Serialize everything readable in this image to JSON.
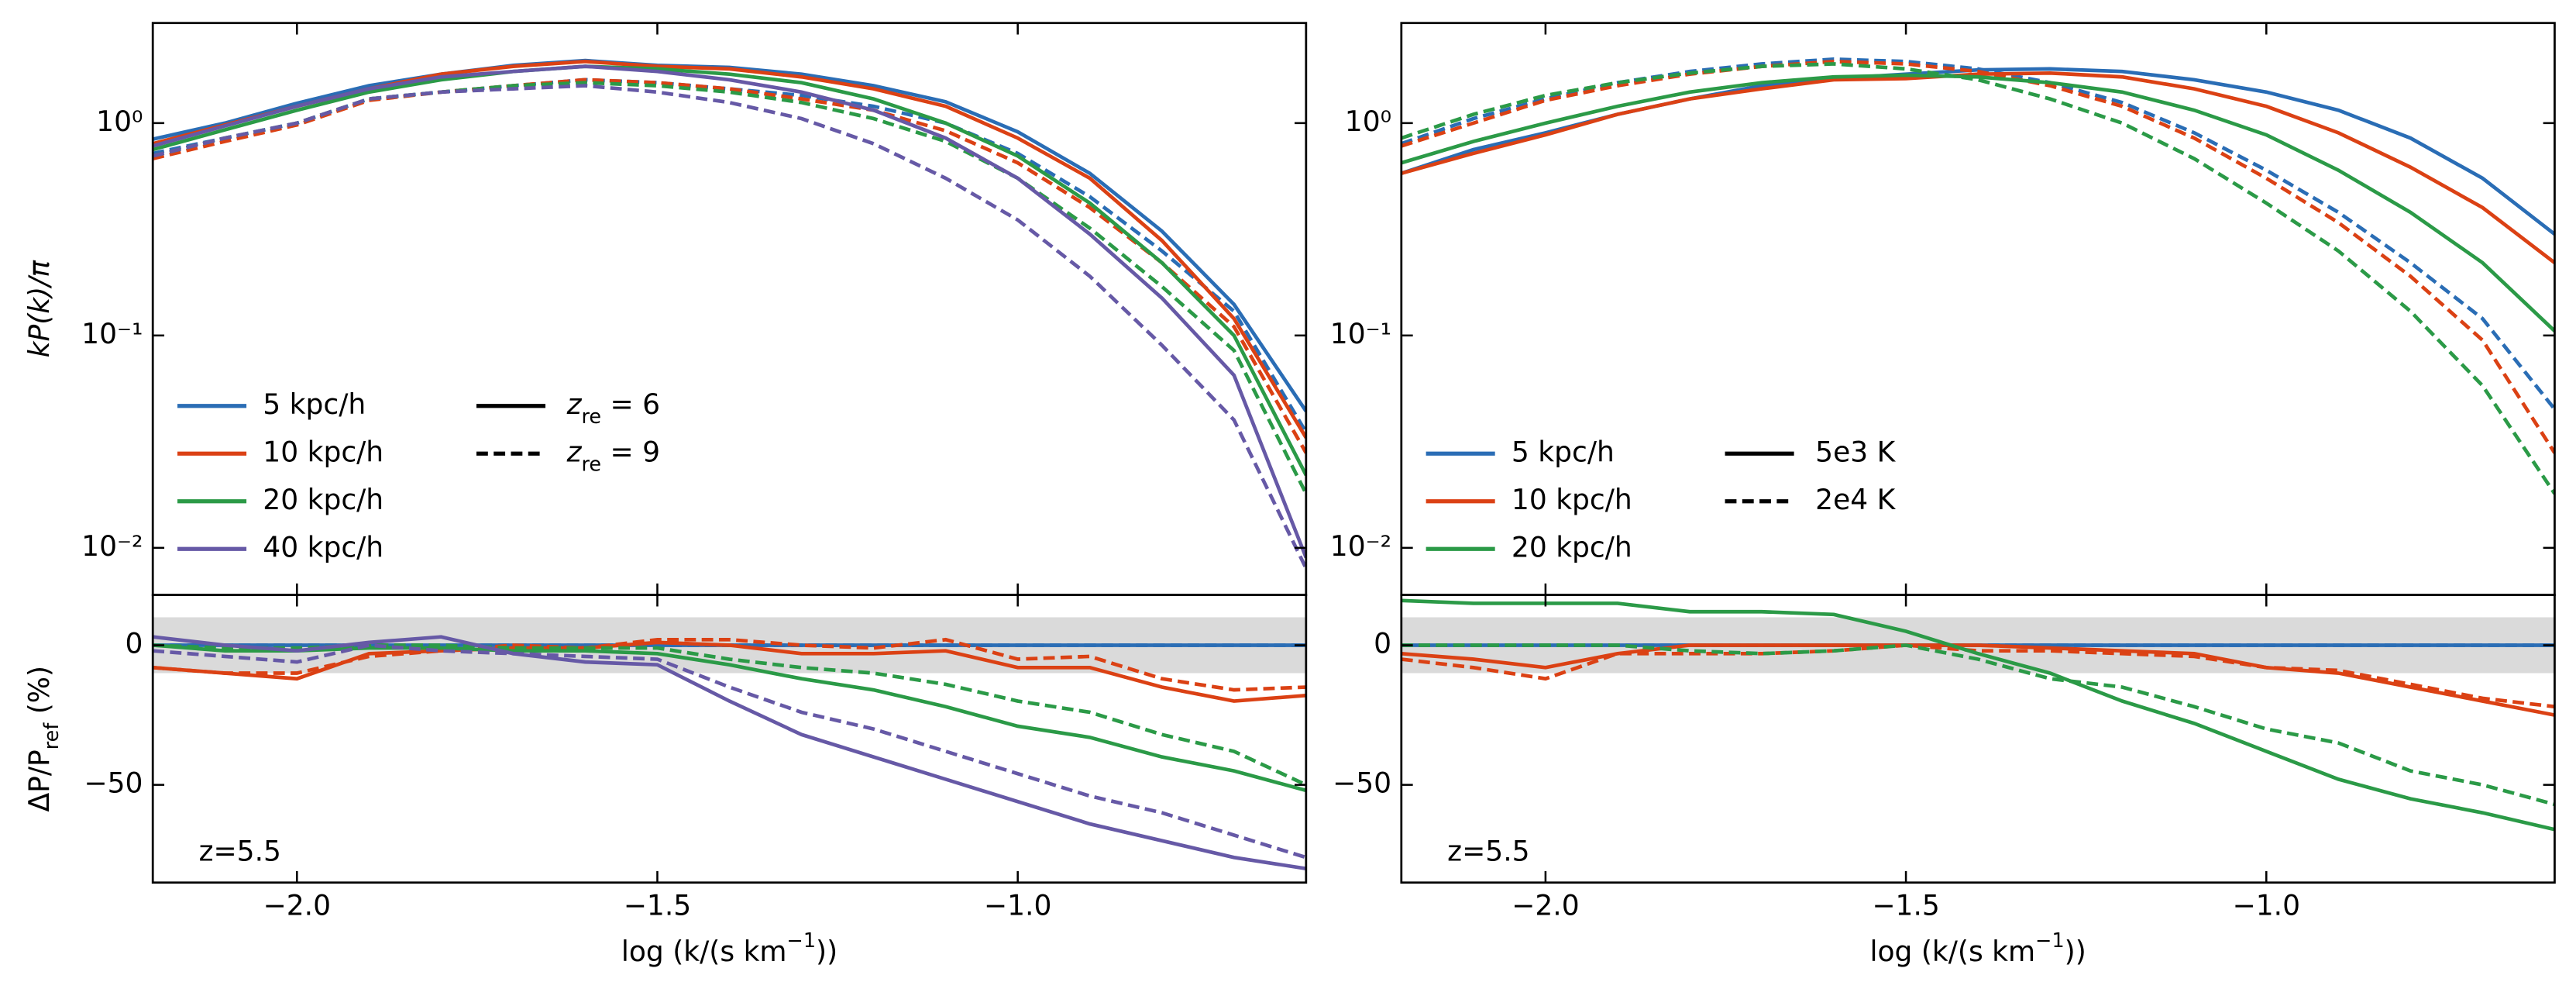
{
  "chart_data": [
    {
      "type": "line",
      "yscale": "log",
      "xlim": [
        -2.2,
        -0.6
      ],
      "ylim": [
        0.006,
        2.96
      ],
      "x": [
        -2.2,
        -2.1,
        -2.0,
        -1.9,
        -1.8,
        -1.7,
        -1.6,
        -1.5,
        -1.4,
        -1.3,
        -1.2,
        -1.1,
        -1.0,
        -0.9,
        -0.8,
        -0.7,
        -0.6
      ],
      "xticks": [
        -2,
        -1.5,
        -1
      ],
      "xticklabels": false,
      "yticks": [
        {
          "value": 1,
          "label": "10⁰"
        },
        {
          "value": 0.1,
          "label": "10⁻¹"
        },
        {
          "value": 0.01,
          "label": "10⁻²"
        }
      ],
      "ylabel": [
        {
          "t": "kP(k)/π",
          "i": true
        }
      ],
      "legend": "lower left",
      "styles": [
        {
          "label": [
            {
              "t": "z",
              "i": true
            },
            {
              "t": "re",
              "sub": true
            },
            {
              "t": " = 6"
            }
          ],
          "dash": false
        },
        {
          "label": [
            {
              "t": "z",
              "i": true
            },
            {
              "t": "re",
              "sub": true
            },
            {
              "t": " = 9"
            }
          ],
          "dash": true
        }
      ],
      "series": [
        {
          "name": "5 kpc/h",
          "color": "#2a6db5",
          "values": [
            [
              0.84,
              1.0,
              1.24,
              1.5,
              1.7,
              1.87,
              1.97,
              1.87,
              1.83,
              1.7,
              1.5,
              1.26,
              0.91,
              0.58,
              0.31,
              0.14,
              0.044
            ],
            [
              0.72,
              0.85,
              1.0,
              1.3,
              1.4,
              1.5,
              1.6,
              1.55,
              1.45,
              1.35,
              1.2,
              1.0,
              0.72,
              0.45,
              0.25,
              0.13,
              0.035
            ]
          ]
        },
        {
          "name": "10 kpc/h",
          "color": "#db4114",
          "values": [
            [
              0.8,
              0.98,
              1.2,
              1.45,
              1.7,
              1.85,
              1.95,
              1.85,
              1.8,
              1.65,
              1.45,
              1.2,
              0.85,
              0.55,
              0.28,
              0.12,
              0.033
            ],
            [
              0.68,
              0.82,
              0.98,
              1.28,
              1.4,
              1.5,
              1.6,
              1.55,
              1.45,
              1.3,
              1.15,
              0.92,
              0.65,
              0.4,
              0.22,
              0.11,
              0.028
            ]
          ]
        },
        {
          "name": "20 kpc/h",
          "color": "#2b9a47",
          "values": [
            [
              0.75,
              0.93,
              1.15,
              1.4,
              1.6,
              1.75,
              1.85,
              1.8,
              1.7,
              1.55,
              1.3,
              1.0,
              0.7,
              0.42,
              0.22,
              0.1,
              0.022
            ],
            [
              0.7,
              0.85,
              1.0,
              1.3,
              1.4,
              1.5,
              1.55,
              1.5,
              1.4,
              1.25,
              1.05,
              0.82,
              0.55,
              0.32,
              0.17,
              0.085,
              0.018
            ]
          ]
        },
        {
          "name": "40 kpc/h",
          "color": "#6659a6",
          "values": [
            [
              0.78,
              0.97,
              1.2,
              1.45,
              1.65,
              1.75,
              1.85,
              1.75,
              1.6,
              1.4,
              1.15,
              0.85,
              0.55,
              0.3,
              0.15,
              0.065,
              0.009
            ],
            [
              0.7,
              0.85,
              1.0,
              1.3,
              1.4,
              1.45,
              1.5,
              1.4,
              1.25,
              1.05,
              0.8,
              0.55,
              0.35,
              0.19,
              0.09,
              0.04,
              0.008
            ]
          ]
        }
      ]
    },
    {
      "type": "line",
      "xlim": [
        -2.2,
        -0.6
      ],
      "ylim": [
        -85,
        18
      ],
      "band": [
        -10,
        10
      ],
      "x": [
        -2.2,
        -2.1,
        -2.0,
        -1.9,
        -1.8,
        -1.7,
        -1.6,
        -1.5,
        -1.4,
        -1.3,
        -1.2,
        -1.1,
        -1.0,
        -0.9,
        -0.8,
        -0.7,
        -0.6
      ],
      "xticks": [
        {
          "value": -2,
          "label": "−2.0"
        },
        {
          "value": -1.5,
          "label": "−1.5"
        },
        {
          "value": -1,
          "label": "−1.0"
        }
      ],
      "yticks": [
        0,
        {
          "value": -50,
          "label": "−50"
        }
      ],
      "xlabel": [
        {
          "t": "log (k/(s km"
        },
        {
          "t": "−1",
          "sup": true
        },
        {
          "t": "))"
        }
      ],
      "ylabel": [
        {
          "t": "ΔP/P"
        },
        {
          "t": "ref",
          "sub": true
        },
        {
          "t": " (%)"
        }
      ],
      "annotation": "z=5.5",
      "series": [
        {
          "color": "#2a6db5",
          "values": [
            [
              0,
              0,
              0,
              0,
              0,
              0,
              0,
              0,
              0,
              0,
              0,
              0,
              0,
              0,
              0,
              0,
              0
            ],
            [
              0,
              0,
              0,
              0,
              0,
              0,
              0,
              0,
              0,
              0,
              0,
              0,
              0,
              0,
              0,
              0,
              0
            ]
          ]
        },
        {
          "color": "#db4114",
          "values": [
            [
              -8,
              -10,
              -12,
              -3,
              -2,
              -1,
              -1,
              1,
              0,
              -3,
              -3,
              -2,
              -8,
              -8,
              -15,
              -20,
              -18
            ],
            [
              -8,
              -10,
              -10,
              -4,
              -2,
              0,
              -1,
              2,
              2,
              0,
              -1,
              2,
              -5,
              -4,
              -12,
              -16,
              -15
            ]
          ]
        },
        {
          "color": "#2b9a47",
          "values": [
            [
              0,
              -2,
              -2,
              -1,
              -1,
              -2,
              -2,
              -3,
              -7,
              -12,
              -16,
              -22,
              -29,
              -33,
              -40,
              -45,
              -52
            ],
            [
              0,
              -1,
              -1,
              0,
              0,
              -1,
              -1,
              -1,
              -5,
              -8,
              -10,
              -14,
              -20,
              -24,
              -32,
              -38,
              -50
            ]
          ]
        },
        {
          "color": "#6659a6",
          "values": [
            [
              3,
              0,
              -2,
              1,
              3,
              -3,
              -6,
              -7,
              -20,
              -32,
              -40,
              -48,
              -56,
              -64,
              -70,
              -76,
              -80
            ],
            [
              -2,
              -4,
              -6,
              0,
              -2,
              -3,
              -4,
              -5,
              -15,
              -24,
              -30,
              -38,
              -46,
              -54,
              -60,
              -68,
              -76
            ]
          ]
        }
      ],
      "styles": [
        {
          "dash": false
        },
        {
          "dash": true
        }
      ]
    },
    {
      "type": "line",
      "yscale": "log",
      "xlim": [
        -2.2,
        -0.6
      ],
      "ylim": [
        0.006,
        2.96
      ],
      "x": [
        -2.2,
        -2.1,
        -2.0,
        -1.9,
        -1.8,
        -1.7,
        -1.6,
        -1.5,
        -1.4,
        -1.3,
        -1.2,
        -1.1,
        -1.0,
        -0.9,
        -0.8,
        -0.7,
        -0.6
      ],
      "xticks": [
        -2,
        -1.5,
        -1
      ],
      "xticklabels": false,
      "yticks": [
        {
          "value": 1,
          "label": "10⁰"
        },
        {
          "value": 0.1,
          "label": "10⁻¹"
        },
        {
          "value": 0.01,
          "label": "10⁻²"
        }
      ],
      "legend": "lower left",
      "styles": [
        {
          "label": [
            {
              "t": "5e3 K"
            }
          ],
          "dash": false
        },
        {
          "label": [
            {
              "t": "2e4 K"
            }
          ],
          "dash": true
        }
      ],
      "series": [
        {
          "name": "5 kpc/h",
          "color": "#2a6db5",
          "values": [
            [
              0.58,
              0.75,
              0.9,
              1.1,
              1.3,
              1.5,
              1.62,
              1.7,
              1.78,
              1.8,
              1.75,
              1.6,
              1.4,
              1.15,
              0.85,
              0.55,
              0.3
            ],
            [
              0.8,
              1.05,
              1.3,
              1.55,
              1.75,
              1.9,
              2.0,
              1.95,
              1.8,
              1.55,
              1.25,
              0.9,
              0.6,
              0.38,
              0.22,
              0.12,
              0.045
            ]
          ]
        },
        {
          "name": "10 kpc/h",
          "color": "#db4114",
          "values": [
            [
              0.58,
              0.72,
              0.88,
              1.1,
              1.3,
              1.45,
              1.6,
              1.62,
              1.7,
              1.72,
              1.65,
              1.45,
              1.2,
              0.9,
              0.62,
              0.4,
              0.22
            ],
            [
              0.78,
              1.0,
              1.28,
              1.5,
              1.7,
              1.85,
              1.95,
              1.9,
              1.75,
              1.5,
              1.2,
              0.85,
              0.55,
              0.34,
              0.19,
              0.095,
              0.028
            ]
          ]
        },
        {
          "name": "20 kpc/h",
          "color": "#2b9a47",
          "values": [
            [
              0.65,
              0.82,
              1.0,
              1.2,
              1.4,
              1.55,
              1.65,
              1.68,
              1.65,
              1.55,
              1.4,
              1.15,
              0.88,
              0.6,
              0.38,
              0.22,
              0.105
            ],
            [
              0.85,
              1.1,
              1.35,
              1.55,
              1.72,
              1.85,
              1.9,
              1.8,
              1.6,
              1.3,
              1.0,
              0.68,
              0.42,
              0.25,
              0.13,
              0.058,
              0.018
            ]
          ]
        }
      ]
    },
    {
      "type": "line",
      "xlim": [
        -2.2,
        -0.6
      ],
      "ylim": [
        -85,
        18
      ],
      "band": [
        -10,
        10
      ],
      "x": [
        -2.2,
        -2.1,
        -2.0,
        -1.9,
        -1.8,
        -1.7,
        -1.6,
        -1.5,
        -1.4,
        -1.3,
        -1.2,
        -1.1,
        -1.0,
        -0.9,
        -0.8,
        -0.7,
        -0.6
      ],
      "xticks": [
        {
          "value": -2,
          "label": "−2.0"
        },
        {
          "value": -1.5,
          "label": "−1.5"
        },
        {
          "value": -1,
          "label": "−1.0"
        }
      ],
      "yticks": [
        0,
        {
          "value": -50,
          "label": "−50"
        }
      ],
      "xlabel": [
        {
          "t": "log (k/(s km"
        },
        {
          "t": "−1",
          "sup": true
        },
        {
          "t": "))"
        }
      ],
      "annotation": "z=5.5",
      "series": [
        {
          "color": "#2a6db5",
          "values": [
            [
              0,
              0,
              0,
              0,
              0,
              0,
              0,
              0,
              0,
              0,
              0,
              0,
              0,
              0,
              0,
              0,
              0
            ],
            [
              0,
              0,
              0,
              0,
              0,
              0,
              0,
              0,
              0,
              0,
              0,
              0,
              0,
              0,
              0,
              0,
              0
            ]
          ]
        },
        {
          "color": "#db4114",
          "values": [
            [
              -3,
              -5,
              -8,
              -3,
              0,
              0,
              0,
              0,
              0,
              -1,
              -2,
              -3,
              -8,
              -10,
              -15,
              -20,
              -25
            ],
            [
              -5,
              -8,
              -12,
              -3,
              -3,
              -3,
              -2,
              0,
              -2,
              -2,
              -3,
              -4,
              -8,
              -9,
              -14,
              -19,
              -22
            ]
          ]
        },
        {
          "color": "#2b9a47",
          "values": [
            [
              16,
              15,
              15,
              15,
              12,
              12,
              11,
              5,
              -3,
              -10,
              -20,
              -28,
              -38,
              -48,
              -55,
              -60,
              -66
            ],
            [
              0,
              0,
              0,
              0,
              -2,
              -3,
              -2,
              0,
              -5,
              -12,
              -15,
              -22,
              -30,
              -35,
              -45,
              -50,
              -57
            ]
          ]
        }
      ],
      "styles": [
        {
          "dash": false
        },
        {
          "dash": true
        }
      ]
    }
  ]
}
